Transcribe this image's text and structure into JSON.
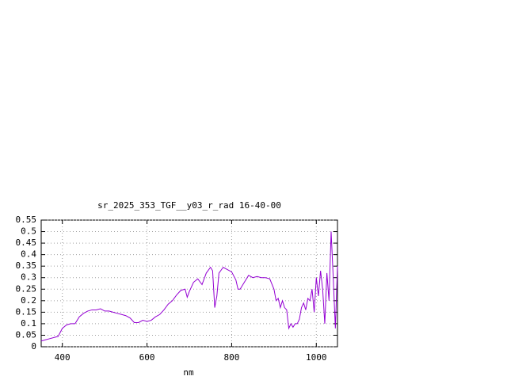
{
  "chart_data": {
    "type": "line",
    "title": "sr_2025_353_TGF__y03_r_rad 16-40-00",
    "x_label": "nm",
    "x": [
      350,
      360,
      370,
      380,
      390,
      400,
      410,
      420,
      430,
      440,
      450,
      460,
      470,
      480,
      490,
      500,
      510,
      520,
      530,
      540,
      550,
      560,
      570,
      580,
      590,
      600,
      610,
      620,
      630,
      640,
      650,
      660,
      670,
      680,
      690,
      695,
      700,
      710,
      720,
      730,
      740,
      750,
      755,
      760,
      765,
      770,
      780,
      790,
      800,
      810,
      815,
      820,
      830,
      840,
      850,
      860,
      870,
      880,
      890,
      900,
      905,
      910,
      915,
      920,
      925,
      930,
      935,
      940,
      945,
      950,
      955,
      960,
      965,
      970,
      975,
      980,
      985,
      990,
      995,
      1000,
      1005,
      1010,
      1015,
      1020,
      1025,
      1030,
      1035,
      1040,
      1045,
      1050
    ],
    "values": [
      0.025,
      0.03,
      0.035,
      0.04,
      0.045,
      0.08,
      0.095,
      0.1,
      0.1,
      0.13,
      0.145,
      0.155,
      0.16,
      0.16,
      0.165,
      0.155,
      0.155,
      0.15,
      0.145,
      0.14,
      0.135,
      0.125,
      0.105,
      0.105,
      0.115,
      0.11,
      0.115,
      0.13,
      0.14,
      0.16,
      0.185,
      0.2,
      0.225,
      0.245,
      0.25,
      0.215,
      0.24,
      0.28,
      0.295,
      0.27,
      0.32,
      0.345,
      0.33,
      0.17,
      0.22,
      0.32,
      0.345,
      0.335,
      0.325,
      0.29,
      0.25,
      0.25,
      0.28,
      0.31,
      0.3,
      0.305,
      0.3,
      0.3,
      0.295,
      0.25,
      0.2,
      0.21,
      0.17,
      0.2,
      0.17,
      0.16,
      0.08,
      0.1,
      0.085,
      0.1,
      0.1,
      0.12,
      0.17,
      0.19,
      0.16,
      0.21,
      0.2,
      0.25,
      0.15,
      0.3,
      0.22,
      0.33,
      0.25,
      0.1,
      0.32,
      0.2,
      0.5,
      0.3,
      0.08,
      0.35
    ],
    "color": "#9400d3",
    "xlim": [
      350,
      1050
    ],
    "xticks": [
      400,
      600,
      800,
      1000
    ],
    "ylim": [
      0,
      0.55
    ],
    "yticks": [
      0,
      0.05,
      0.1,
      0.15,
      0.2,
      0.25,
      0.3,
      0.35,
      0.4,
      0.45,
      0.5,
      0.55
    ],
    "grid": true
  }
}
